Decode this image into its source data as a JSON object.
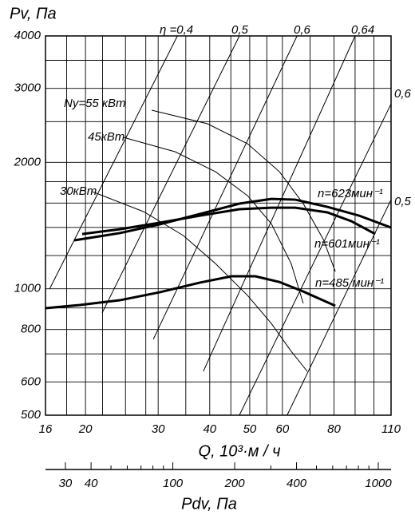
{
  "chart_data": {
    "type": "line",
    "log_x": true,
    "log_y": true,
    "grid": true,
    "ylabel": "Pv,  Па",
    "xlabel": "Q, 10³·м / ч",
    "x2label": "Pdv,  Па",
    "xlim": [
      16,
      110
    ],
    "xticks": [
      16,
      20,
      30,
      40,
      50,
      60,
      80,
      110
    ],
    "xminor": [
      18,
      22,
      25,
      28,
      35,
      45,
      55,
      70,
      90,
      100
    ],
    "ylim": [
      500,
      4000
    ],
    "yticks": [
      500,
      600,
      800,
      1000,
      2000,
      3000,
      4000
    ],
    "yminor": [
      700,
      900,
      1200,
      1400,
      1600,
      1800,
      2500,
      3500
    ],
    "x2lim": [
      24,
      1154
    ],
    "x2ticks": [
      30,
      40,
      100,
      200,
      400,
      1000
    ],
    "x2minor": [
      50,
      60,
      70,
      80,
      90,
      300,
      500,
      600,
      700,
      800,
      900
    ],
    "series": [
      {
        "name": "n=623мин⁻¹",
        "color": "#000",
        "width": 3,
        "x": [
          18.78,
          24.21,
          30.23,
          37.79,
          47.21,
          56.41,
          64.47,
          77.07,
          92.1,
          110
        ],
        "values": [
          1304,
          1357,
          1423,
          1506,
          1595,
          1637,
          1630,
          1567,
          1493,
          1399
        ]
      },
      {
        "name": "n=601мин⁻¹",
        "color": "#000",
        "width": 3,
        "x": [
          19.64,
          24.21,
          30.23,
          37.79,
          47.21,
          56.41,
          64.47,
          77.07,
          88.1,
          100.7
        ],
        "values": [
          1350,
          1386,
          1436,
          1493,
          1547,
          1560,
          1560,
          1520,
          1449,
          1350
        ]
      },
      {
        "name": "n=485 мин⁻¹",
        "color": "#000",
        "width": 3,
        "x": [
          16,
          19.38,
          24.21,
          30.23,
          37.79,
          45.15,
          51.6,
          58.98,
          67.41,
          80.58
        ],
        "values": [
          899,
          915,
          939,
          981,
          1034,
          1071,
          1071,
          1038,
          985,
          911
        ]
      },
      {
        "name": "Ny=55 кВт",
        "color": "#000",
        "width": 1,
        "x": [
          28.93,
          39.5,
          49.4,
          59.0,
          67.4,
          75.4,
          80.6
        ],
        "values": [
          2662,
          2471,
          2215,
          1900,
          1595,
          1310,
          1099
        ]
      },
      {
        "name": "45кВт",
        "color": "#000",
        "width": 1,
        "x": [
          24.75,
          33.0,
          41.3,
          49.4,
          56.4,
          63.0,
          67.4
        ],
        "values": [
          2293,
          2119,
          1900,
          1666,
          1429,
          1148,
          923
        ]
      },
      {
        "name": "30кВт",
        "color": "#000",
        "width": 1,
        "x": [
          20.78,
          27.67,
          34.52,
          41.3,
          49.4,
          56.4,
          63.0,
          68.9
        ],
        "values": [
          1703,
          1526,
          1339,
          1148,
          964,
          827,
          710,
          636
        ]
      },
      {
        "name": "η =0,4",
        "color": "#000",
        "width": 1,
        "x": [
          16.36,
          33.4
        ],
        "values": [
          998,
          4000
        ]
      },
      {
        "name": "0,5",
        "color": "#000",
        "width": 1,
        "x": [
          21.95,
          47.2
        ],
        "values": [
          876,
          4000
        ]
      },
      {
        "name": "0,6",
        "color": "#000",
        "width": 1,
        "x": [
          29.2,
          65.1
        ],
        "values": [
          758,
          4000
        ]
      },
      {
        "name": "0,64",
        "color": "#000",
        "width": 1,
        "x": [
          38.6,
          90.0
        ],
        "values": [
          636,
          4000
        ]
      },
      {
        "name": "0,6",
        "color": "#000",
        "width": 1,
        "x": [
          47.2,
          110
        ],
        "values": [
          500,
          2756
        ]
      },
      {
        "name": "0,5",
        "color": "#000",
        "width": 1,
        "x": [
          61.6,
          110
        ],
        "values": [
          500,
          1630
        ]
      }
    ]
  }
}
